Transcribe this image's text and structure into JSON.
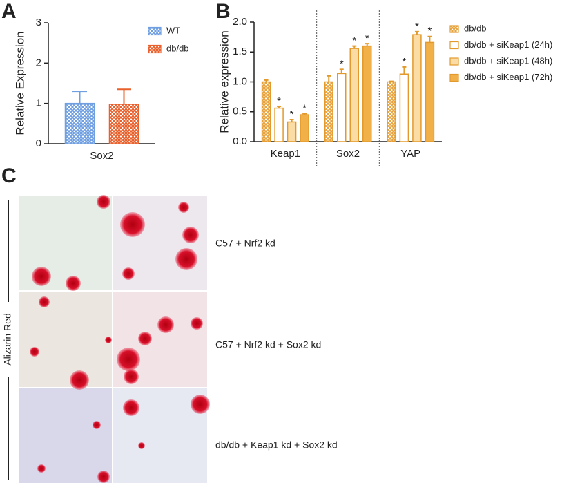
{
  "panels": [
    "A",
    "B",
    "C"
  ],
  "chart_data": [
    {
      "type": "bar",
      "ylabel": "Relative Expression",
      "categories": [
        "Sox2"
      ],
      "series": [
        {
          "name": "WT",
          "color": "#6f9fe0",
          "edgecolor": "#6f9fe0",
          "hatch": true,
          "values": [
            1.0
          ],
          "errors": [
            0.3
          ]
        },
        {
          "name": "db/db",
          "color": "#e8602c",
          "edgecolor": "#e8602c",
          "hatch": true,
          "values": [
            0.98
          ],
          "errors": [
            0.37
          ]
        }
      ],
      "ylim": [
        0,
        3
      ],
      "yticks": [
        0,
        1,
        2,
        3
      ]
    },
    {
      "type": "bar",
      "ylabel": "Relative expression",
      "categories": [
        "Keap1",
        "Sox2",
        "YAP"
      ],
      "series": [
        {
          "name": "db/db",
          "color": "#e8a33d",
          "edgecolor": "#e39a2c",
          "hatch": true,
          "values": [
            1.0,
            1.0,
            1.0
          ],
          "errors": [
            0.03,
            0.1,
            0.01
          ]
        },
        {
          "name": "db/db + siKeap1 (24h)",
          "color": "#ffffff",
          "edgecolor": "#e39a2c",
          "values": [
            0.56,
            1.14,
            1.13
          ],
          "errors": [
            0.03,
            0.07,
            0.12
          ],
          "marks": [
            "*",
            "*",
            "*"
          ]
        },
        {
          "name": "db/db + siKeap1 (48h)",
          "color": "#fbdca4",
          "edgecolor": "#e39a2c",
          "values": [
            0.33,
            1.56,
            1.79
          ],
          "errors": [
            0.04,
            0.04,
            0.05
          ],
          "marks": [
            "*",
            "*",
            "*"
          ]
        },
        {
          "name": "db/db + siKeap1 (72h)",
          "color": "#f2b048",
          "edgecolor": "#e39a2c",
          "values": [
            0.45,
            1.6,
            1.66
          ],
          "errors": [
            0.02,
            0.04,
            0.1
          ],
          "marks": [
            "*",
            "*",
            "*"
          ]
        }
      ],
      "ylim": [
        0,
        2
      ],
      "yticks": [
        {
          "value": 0,
          "label": "0.0"
        },
        0.5,
        {
          "value": 1,
          "label": "1.0"
        },
        1.5,
        {
          "value": 2,
          "label": "2.0"
        }
      ],
      "separators": true
    }
  ],
  "images": {
    "stain": "Alizarin Red",
    "rows": [
      "C57 + Nrf2 kd",
      "C57 + Nrf2 kd + Sox2 kd",
      "db/db + Keap1 kd + Sox2 kd"
    ]
  }
}
